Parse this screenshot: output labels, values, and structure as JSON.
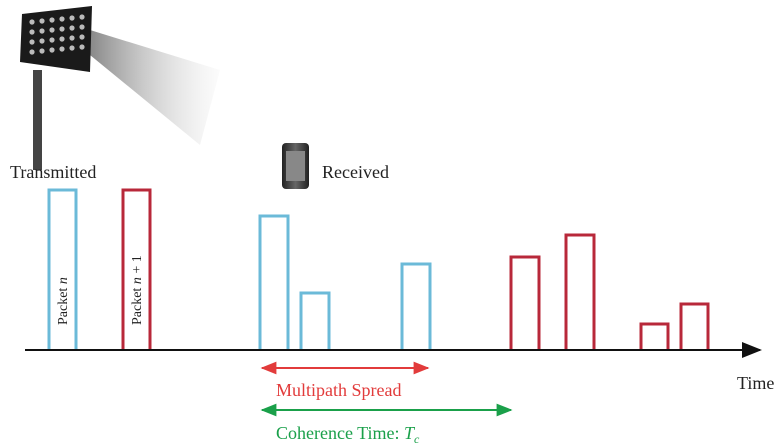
{
  "labels": {
    "transmitted": "Transmitted",
    "received": "Received",
    "time": "Time",
    "packet_n": {
      "word": "Packet",
      "symbol": "n"
    },
    "packet_n_plus_1": {
      "word": "Packet",
      "symbol": "n",
      "suffix": "+ 1"
    },
    "multipath_spread": "Multipath Spread",
    "coherence_time": {
      "text": "Coherence Time:",
      "symbol": "T",
      "subscript": "c"
    }
  }
}
